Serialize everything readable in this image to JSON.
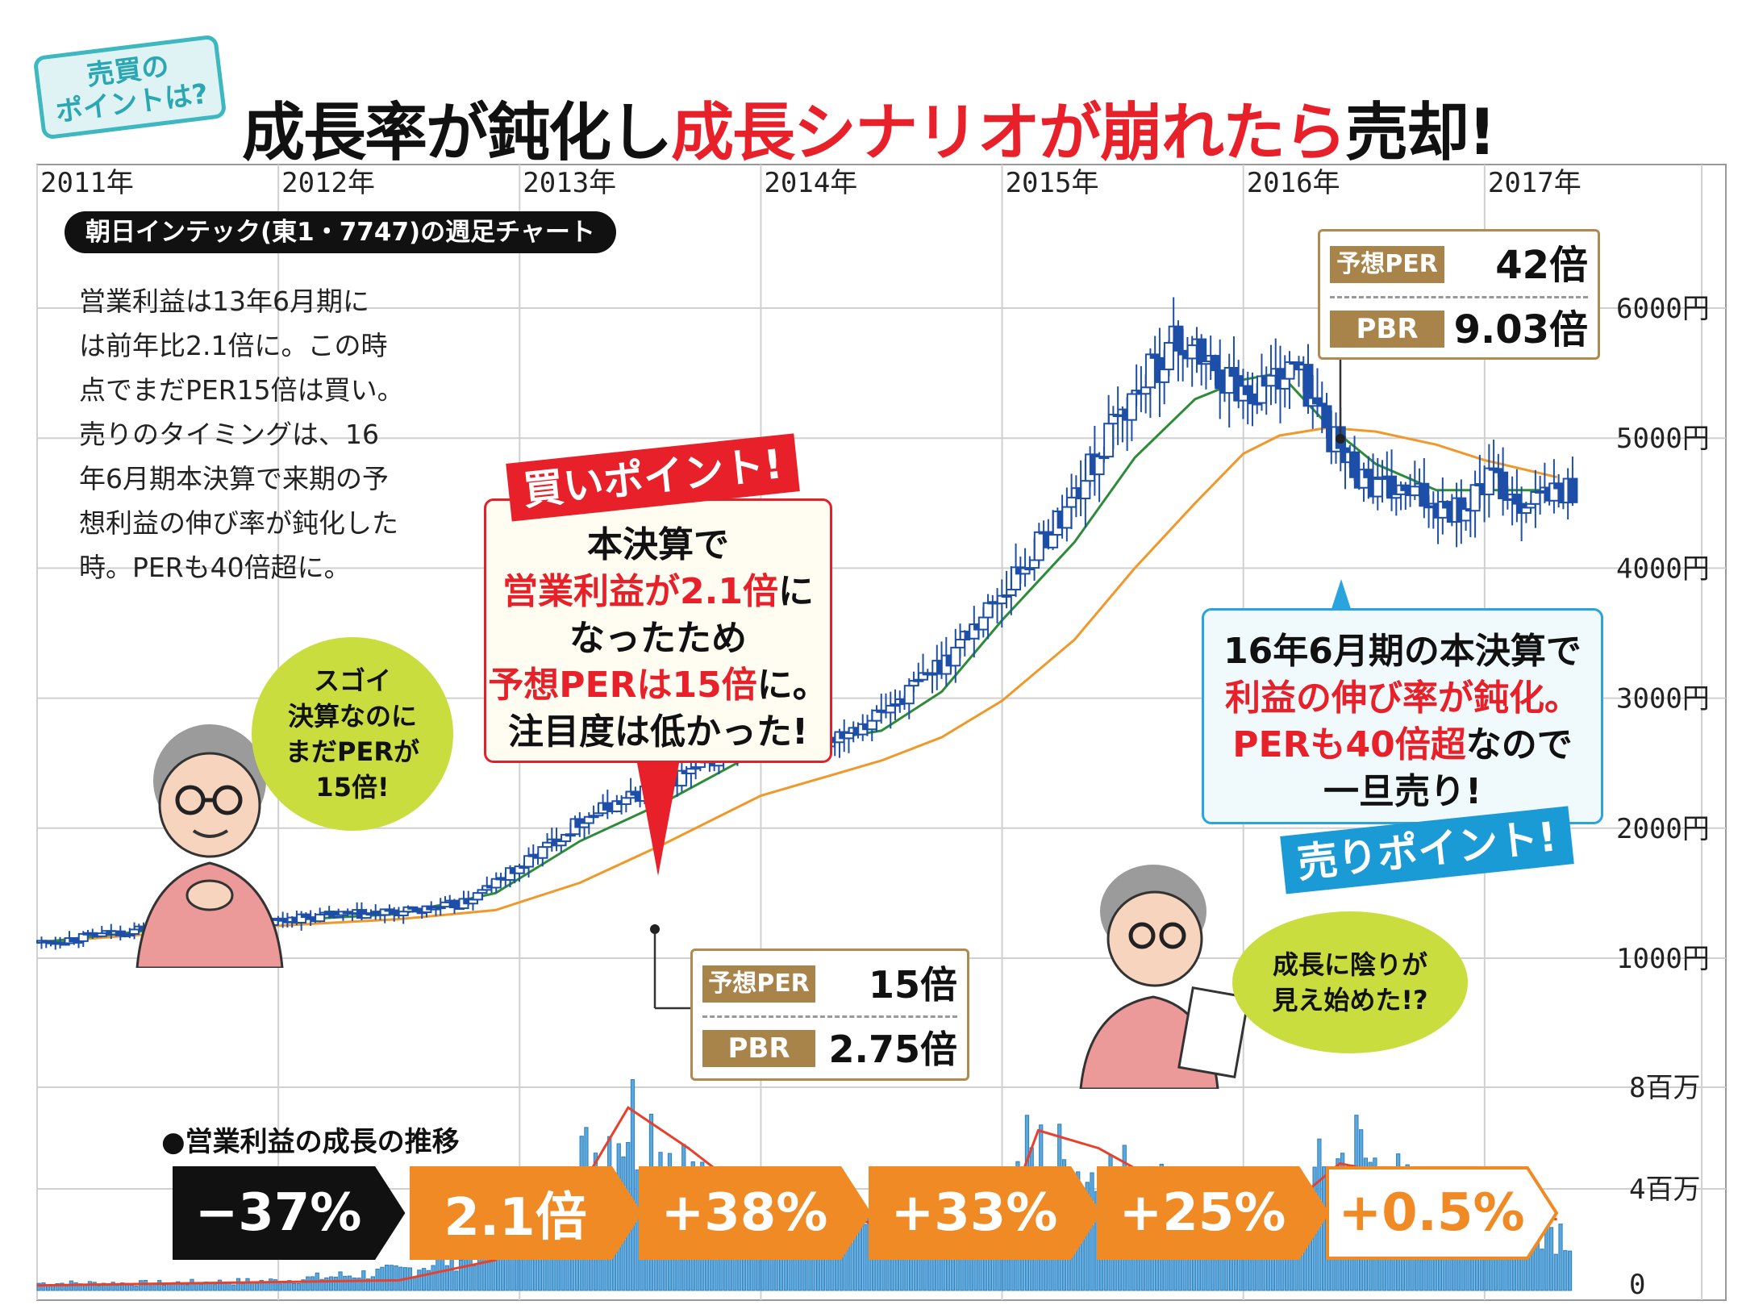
{
  "header": {
    "badge_line1": "売買の",
    "badge_line2": "ポイントは?",
    "title_part1": "成長率が鈍化し",
    "title_part2": "成長シナリオが崩れたら",
    "title_part3": "売却!"
  },
  "chart_tag": "朝日インテック(東1・7747)の週足チャート",
  "note_lines": [
    "営業利益は13年6月期に",
    "は前年比2.1倍に。この時",
    "点でまだPER15倍は買い。",
    "売りのタイミングは、16",
    "年6月期本決算で来期の予",
    "想利益の伸び率が鈍化した",
    "時。PERも40倍超に。"
  ],
  "buy": {
    "label": "買いポイント!",
    "line1": "本決算で",
    "line2": "営業利益が2.1倍",
    "line2b": "に",
    "line3": "なったため",
    "line4": "予想PERは15倍",
    "line4b": "に。",
    "line5": "注目度は低かった!"
  },
  "sell": {
    "label": "売りポイント!",
    "line1": "16年6月期の本決算で",
    "line2": "利益の伸び率が鈍化。",
    "line3": "PERも40倍超",
    "line3b": "なので",
    "line4": "一旦売り!"
  },
  "per_box_buy": {
    "per_label": "予想PER",
    "per_value": "15倍",
    "pbr_label": "PBR",
    "pbr_value": "2.75倍"
  },
  "per_box_sell": {
    "per_label": "予想PER",
    "per_value": "42倍",
    "pbr_label": "PBR",
    "pbr_value": "9.03倍"
  },
  "bubble_left": [
    "スゴイ",
    "決算なのに",
    "まだPERが",
    "15倍!"
  ],
  "bubble_right": [
    "成長に陰りが",
    "見え始めた!?"
  ],
  "growth": {
    "title": "●営業利益の成長の推移",
    "values": [
      "−37%",
      "2.1倍",
      "+38%",
      "+33%",
      "+25%",
      "+0.5%"
    ]
  },
  "colors": {
    "candle": "#1d4fa8",
    "ma_short": "#2e8b3a",
    "ma_long": "#f0982a",
    "volume": "#5aa8dc",
    "volume_ma": "#e8402a",
    "accent_red": "#e8202a",
    "accent_orange": "#f08a24",
    "accent_blue": "#1b9bd6"
  },
  "chart_data": {
    "type": "candlestick",
    "x_tick_labels": [
      "2011年",
      "2012年",
      "2013年",
      "2014年",
      "2015年",
      "2016年",
      "2017年"
    ],
    "y_tick_labels": [
      "6000円",
      "5000円",
      "4000円",
      "3000円",
      "2000円",
      "1000円"
    ],
    "y_ticks": [
      6000,
      5000,
      4000,
      3000,
      2000,
      1000
    ],
    "ylim": [
      0,
      6000
    ],
    "xlim": [
      2011.0,
      2018.0
    ],
    "price_series": [
      {
        "t": 2011.0,
        "p": 1120
      },
      {
        "t": 2011.25,
        "p": 1180
      },
      {
        "t": 2011.5,
        "p": 1250
      },
      {
        "t": 2011.75,
        "p": 1230
      },
      {
        "t": 2012.0,
        "p": 1300
      },
      {
        "t": 2012.25,
        "p": 1330
      },
      {
        "t": 2012.5,
        "p": 1350
      },
      {
        "t": 2012.75,
        "p": 1420
      },
      {
        "t": 2013.0,
        "p": 1720
      },
      {
        "t": 2013.25,
        "p": 2080
      },
      {
        "t": 2013.5,
        "p": 2280
      },
      {
        "t": 2013.75,
        "p": 2480
      },
      {
        "t": 2014.0,
        "p": 2750
      },
      {
        "t": 2014.25,
        "p": 2680
      },
      {
        "t": 2014.5,
        "p": 2900
      },
      {
        "t": 2014.75,
        "p": 3300
      },
      {
        "t": 2015.0,
        "p": 3850
      },
      {
        "t": 2015.25,
        "p": 4450
      },
      {
        "t": 2015.5,
        "p": 5250
      },
      {
        "t": 2015.7,
        "p": 5750
      },
      {
        "t": 2016.0,
        "p": 5350
      },
      {
        "t": 2016.2,
        "p": 5550
      },
      {
        "t": 2016.4,
        "p": 4850
      },
      {
        "t": 2016.55,
        "p": 4600
      },
      {
        "t": 2016.7,
        "p": 4550
      },
      {
        "t": 2016.9,
        "p": 4450
      },
      {
        "t": 2017.0,
        "p": 4700
      },
      {
        "t": 2017.15,
        "p": 4500
      },
      {
        "t": 2017.3,
        "p": 4600
      }
    ],
    "ma_short_series": [
      {
        "t": 2011.0,
        "p": 1120
      },
      {
        "t": 2011.5,
        "p": 1220
      },
      {
        "t": 2012.0,
        "p": 1290
      },
      {
        "t": 2012.5,
        "p": 1340
      },
      {
        "t": 2012.9,
        "p": 1500
      },
      {
        "t": 2013.25,
        "p": 1900
      },
      {
        "t": 2013.6,
        "p": 2200
      },
      {
        "t": 2014.0,
        "p": 2600
      },
      {
        "t": 2014.5,
        "p": 2750
      },
      {
        "t": 2014.75,
        "p": 3050
      },
      {
        "t": 2015.0,
        "p": 3600
      },
      {
        "t": 2015.3,
        "p": 4200
      },
      {
        "t": 2015.55,
        "p": 4850
      },
      {
        "t": 2015.8,
        "p": 5300
      },
      {
        "t": 2016.0,
        "p": 5450
      },
      {
        "t": 2016.15,
        "p": 5500
      },
      {
        "t": 2016.35,
        "p": 5100
      },
      {
        "t": 2016.55,
        "p": 4800
      },
      {
        "t": 2016.8,
        "p": 4600
      },
      {
        "t": 2017.0,
        "p": 4600
      },
      {
        "t": 2017.3,
        "p": 4600
      }
    ],
    "ma_long_series": [
      {
        "t": 2011.0,
        "p": 1120
      },
      {
        "t": 2011.5,
        "p": 1190
      },
      {
        "t": 2012.0,
        "p": 1250
      },
      {
        "t": 2012.5,
        "p": 1300
      },
      {
        "t": 2012.9,
        "p": 1370
      },
      {
        "t": 2013.25,
        "p": 1580
      },
      {
        "t": 2013.6,
        "p": 1880
      },
      {
        "t": 2014.0,
        "p": 2250
      },
      {
        "t": 2014.5,
        "p": 2520
      },
      {
        "t": 2014.75,
        "p": 2700
      },
      {
        "t": 2015.0,
        "p": 2980
      },
      {
        "t": 2015.3,
        "p": 3450
      },
      {
        "t": 2015.55,
        "p": 4000
      },
      {
        "t": 2015.8,
        "p": 4500
      },
      {
        "t": 2016.0,
        "p": 4880
      },
      {
        "t": 2016.15,
        "p": 5020
      },
      {
        "t": 2016.35,
        "p": 5080
      },
      {
        "t": 2016.55,
        "p": 5050
      },
      {
        "t": 2016.8,
        "p": 4950
      },
      {
        "t": 2017.0,
        "p": 4830
      },
      {
        "t": 2017.3,
        "p": 4700
      }
    ],
    "volume_axis": {
      "tick_labels": [
        "8百万",
        "4百万",
        "0"
      ],
      "ticks": [
        8,
        4,
        0
      ],
      "ylim": [
        0,
        8
      ],
      "unit": "百万"
    },
    "volume_series": [
      {
        "t": 2011.0,
        "v": 0.3
      },
      {
        "t": 2011.5,
        "v": 0.3
      },
      {
        "t": 2012.0,
        "v": 0.4
      },
      {
        "t": 2012.5,
        "v": 0.8
      },
      {
        "t": 2012.9,
        "v": 1.8
      },
      {
        "t": 2013.25,
        "v": 5.0
      },
      {
        "t": 2013.45,
        "v": 7.5
      },
      {
        "t": 2013.6,
        "v": 6.0
      },
      {
        "t": 2013.8,
        "v": 3.2
      },
      {
        "t": 2014.0,
        "v": 2.8
      },
      {
        "t": 2014.5,
        "v": 2.4
      },
      {
        "t": 2014.75,
        "v": 2.6
      },
      {
        "t": 2015.0,
        "v": 3.0
      },
      {
        "t": 2015.1,
        "v": 5.5
      },
      {
        "t": 2015.3,
        "v": 5.0
      },
      {
        "t": 2015.5,
        "v": 4.5
      },
      {
        "t": 2015.8,
        "v": 3.6
      },
      {
        "t": 2016.0,
        "v": 3.2
      },
      {
        "t": 2016.25,
        "v": 4.0
      },
      {
        "t": 2016.45,
        "v": 5.8
      },
      {
        "t": 2016.7,
        "v": 3.6
      },
      {
        "t": 2016.9,
        "v": 3.0
      },
      {
        "t": 2017.0,
        "v": 4.5
      },
      {
        "t": 2017.3,
        "v": 2.5
      }
    ],
    "volume_ma_series": [
      {
        "t": 2011.0,
        "v": 0.2
      },
      {
        "t": 2012.5,
        "v": 0.4
      },
      {
        "t": 2012.9,
        "v": 1.2
      },
      {
        "t": 2013.25,
        "v": 4.0
      },
      {
        "t": 2013.45,
        "v": 7.2
      },
      {
        "t": 2013.7,
        "v": 5.6
      },
      {
        "t": 2014.0,
        "v": 3.4
      },
      {
        "t": 2014.5,
        "v": 2.6
      },
      {
        "t": 2015.0,
        "v": 2.5
      },
      {
        "t": 2015.15,
        "v": 6.3
      },
      {
        "t": 2015.4,
        "v": 5.6
      },
      {
        "t": 2015.8,
        "v": 3.5
      },
      {
        "t": 2016.2,
        "v": 3.4
      },
      {
        "t": 2016.4,
        "v": 5.0
      },
      {
        "t": 2016.7,
        "v": 4.4
      },
      {
        "t": 2017.0,
        "v": 3.2
      },
      {
        "t": 2017.3,
        "v": 2.8
      }
    ]
  }
}
